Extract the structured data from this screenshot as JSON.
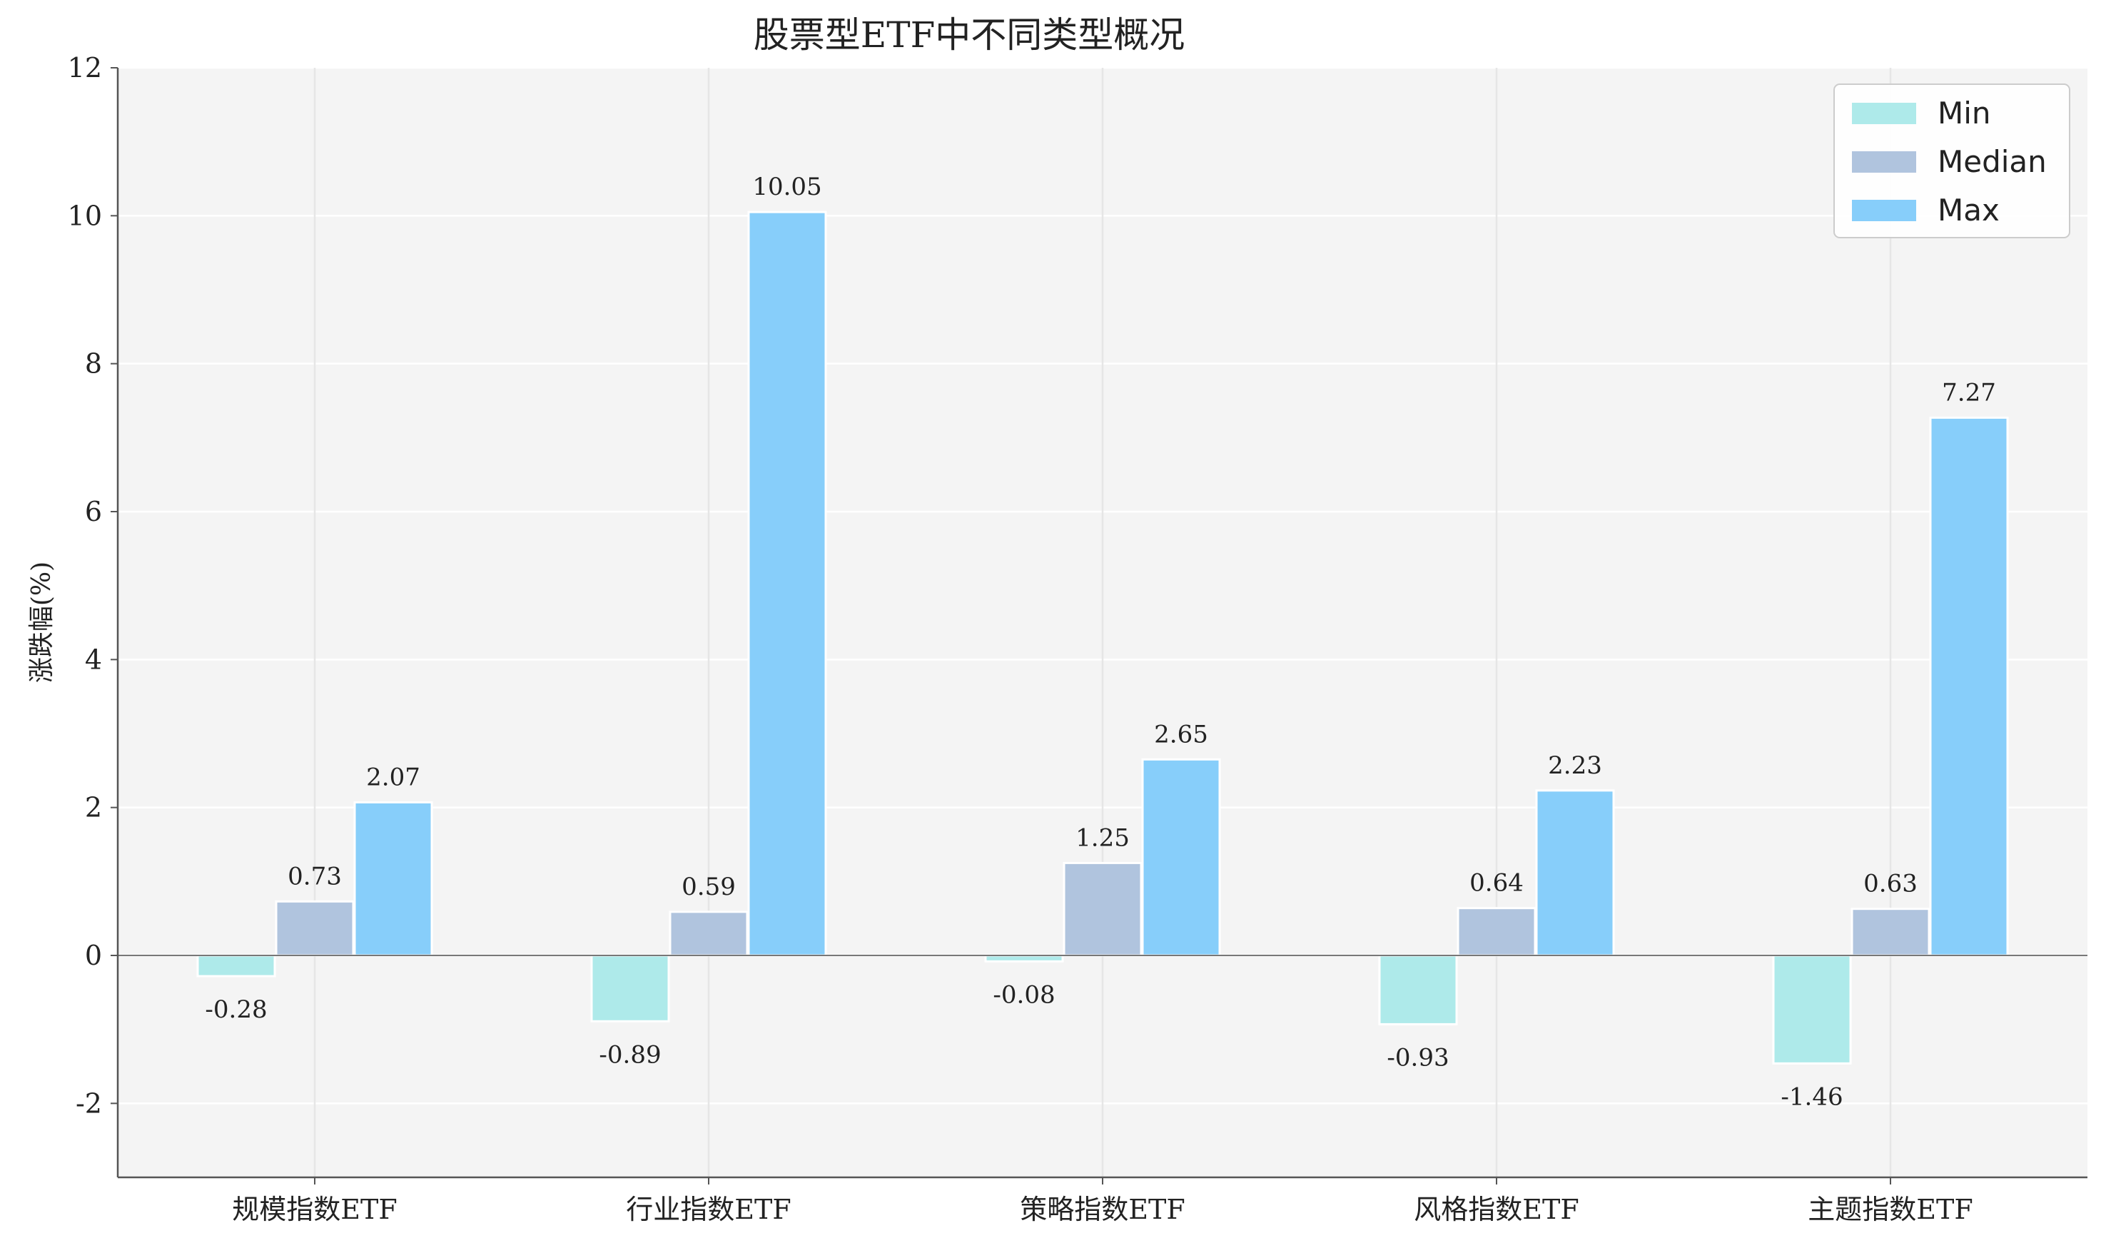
{
  "chart_data": {
    "type": "bar",
    "title": "股票型ETF中不同类型概况",
    "xlabel": "",
    "ylabel": "涨跌幅(%)",
    "categories": [
      "规模指数ETF",
      "行业指数ETF",
      "策略指数ETF",
      "风格指数ETF",
      "主题指数ETF"
    ],
    "series": [
      {
        "name": "Min",
        "color": "#aeeaea",
        "values": [
          -0.28,
          -0.89,
          -0.08,
          -0.93,
          -1.46
        ]
      },
      {
        "name": "Median",
        "color": "#b0c4de",
        "values": [
          0.73,
          0.59,
          1.25,
          0.64,
          0.63
        ]
      },
      {
        "name": "Max",
        "color": "#87cefa",
        "values": [
          2.07,
          10.05,
          2.65,
          2.23,
          7.27
        ]
      }
    ],
    "ylim": [
      -3,
      12
    ],
    "yticks": [
      -2,
      0,
      2,
      4,
      6,
      8,
      10,
      12
    ],
    "grid": true,
    "legend_position": "top-right",
    "background": "#f4f4f4"
  }
}
